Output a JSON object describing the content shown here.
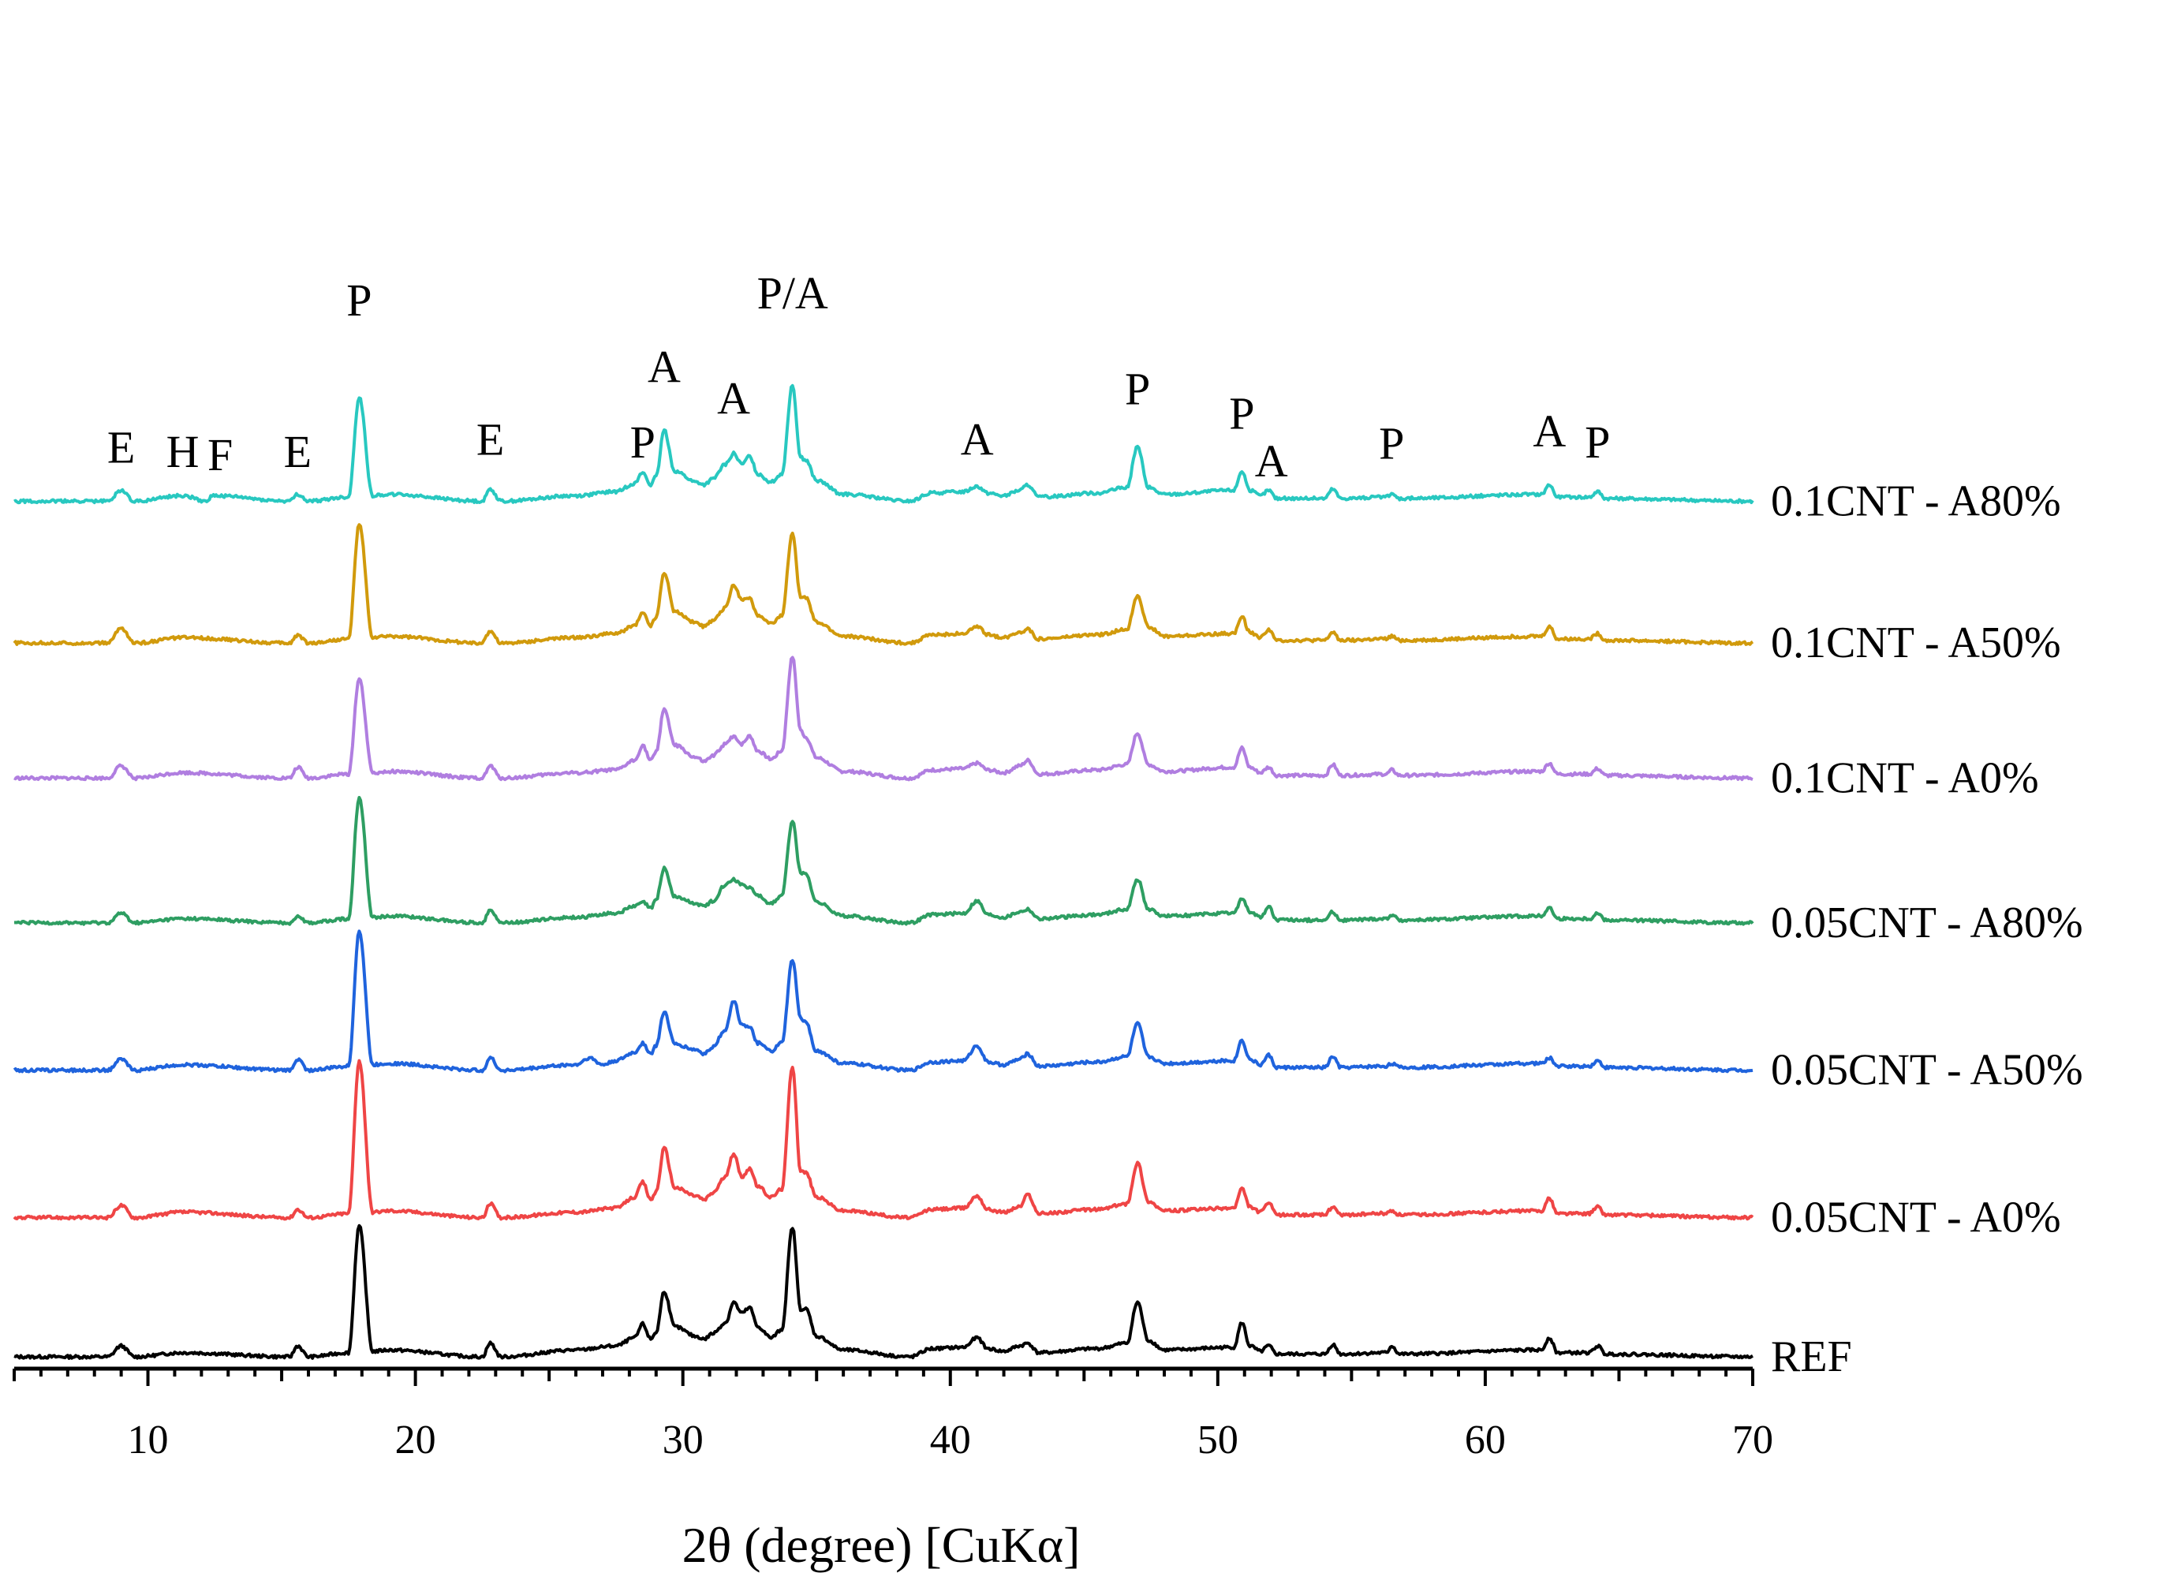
{
  "chart_data": {
    "type": "line",
    "title": "",
    "xlabel": "2θ (degree) [CuKα]",
    "ylabel": "",
    "xlim": [
      5,
      70
    ],
    "xticks": [
      "10",
      "20",
      "30",
      "40",
      "50",
      "60",
      "70"
    ],
    "grid": false,
    "legend": "labels-right-of-each-trace",
    "peaks": [
      {
        "x": 9.0,
        "y": 2.0,
        "label": "E"
      },
      {
        "x": 11.3,
        "y": 1.7,
        "label": "H"
      },
      {
        "x": 12.7,
        "y": 1.45,
        "label": "F"
      },
      {
        "x": 15.6,
        "y": 1.7,
        "label": "E"
      },
      {
        "x": 17.9,
        "y": 12.8,
        "label": "P"
      },
      {
        "x": 22.8,
        "y": 2.6,
        "label": "E"
      },
      {
        "x": 28.5,
        "y": 2.4,
        "label": "P"
      },
      {
        "x": 29.3,
        "y": 7.9,
        "label": "A"
      },
      {
        "x": 31.9,
        "y": 5.6,
        "label": "A"
      },
      {
        "x": 34.1,
        "y": 13.3,
        "label": "P/A"
      },
      {
        "x": 41.0,
        "y": 2.6,
        "label": "A"
      },
      {
        "x": 47.0,
        "y": 6.3,
        "label": "P"
      },
      {
        "x": 50.9,
        "y": 4.5,
        "label": "P"
      },
      {
        "x": 52.0,
        "y": 1.0,
        "label": "A"
      },
      {
        "x": 56.5,
        "y": 2.3,
        "label": "P"
      },
      {
        "x": 62.4,
        "y": 3.2,
        "label": "A"
      },
      {
        "x": 64.2,
        "y": 2.4,
        "label": "P"
      }
    ],
    "series": [
      {
        "name": "REF",
        "color": "#000000",
        "offset": 0,
        "x": [
          5,
          8.5,
          9.0,
          9.5,
          11.3,
          15.3,
          15.6,
          16,
          17.5,
          17.9,
          18.4,
          19,
          22.5,
          22.8,
          23.2,
          26,
          27.5,
          28.2,
          28.5,
          28.8,
          29.0,
          29.3,
          29.7,
          30.5,
          30.8,
          31.1,
          31.6,
          31.9,
          32.2,
          32.5,
          32.8,
          33.3,
          33.7,
          34.1,
          34.4,
          34.6,
          35.0,
          36.0,
          38.5,
          39.3,
          40.5,
          41.0,
          41.4,
          42.0,
          42.6,
          42.9,
          43.3,
          45.5,
          46.6,
          47.0,
          47.4,
          48.0,
          50.6,
          50.9,
          51.2,
          51.6,
          51.9,
          52.2,
          54.0,
          54.3,
          54.6,
          56.3,
          56.5,
          56.8,
          62.1,
          62.4,
          62.7,
          63.9,
          64.2,
          64.5,
          70
        ],
        "y": [
          0,
          0,
          0.8,
          0,
          0.3,
          0,
          0.8,
          0,
          0.3,
          9.6,
          0.4,
          0.5,
          0,
          1.0,
          0,
          0.5,
          0.8,
          1.4,
          2.4,
          1.3,
          1.8,
          4.8,
          2.2,
          1.5,
          1.3,
          1.7,
          2.5,
          4.0,
          3.2,
          3.6,
          2.2,
          1.4,
          2.0,
          9.5,
          3.5,
          3.5,
          1.5,
          0.5,
          0,
          0.6,
          0.7,
          1.4,
          0.6,
          0.4,
          0.8,
          1.0,
          0.3,
          0.6,
          1.0,
          4.0,
          1.2,
          0.5,
          0.7,
          2.5,
          0.8,
          0.4,
          0.8,
          0.2,
          0.2,
          0.9,
          0.2,
          0.3,
          0.8,
          0.2,
          0.5,
          1.4,
          0.3,
          0.3,
          0.8,
          0.2,
          0
        ]
      },
      {
        "name": "0.05CNT - A0%",
        "color": "#ef4545",
        "offset": 10.2,
        "x": [
          5,
          8.5,
          9.0,
          9.5,
          11.3,
          15.3,
          15.6,
          16,
          17.5,
          17.9,
          18.4,
          19,
          22.5,
          22.8,
          23.2,
          26,
          27.5,
          28.2,
          28.5,
          28.8,
          29.0,
          29.3,
          29.7,
          30.5,
          30.8,
          31.1,
          31.6,
          31.9,
          32.2,
          32.5,
          32.8,
          33.3,
          33.7,
          34.1,
          34.4,
          34.6,
          35.0,
          36.0,
          38.5,
          39.3,
          40.5,
          41.0,
          41.4,
          42.0,
          42.6,
          42.9,
          43.3,
          45.5,
          46.6,
          47.0,
          47.4,
          48.0,
          50.6,
          50.9,
          51.2,
          51.6,
          51.9,
          52.2,
          54.0,
          54.3,
          54.6,
          56.3,
          56.5,
          56.8,
          62.1,
          62.4,
          62.7,
          63.9,
          64.2,
          64.5,
          70
        ],
        "y": [
          0,
          0,
          0.9,
          0,
          0.4,
          0,
          0.6,
          0,
          0.3,
          11.5,
          0.4,
          0.5,
          0,
          1.0,
          0,
          0.4,
          0.7,
          1.5,
          2.6,
          1.3,
          1.9,
          5.1,
          2.2,
          1.6,
          1.3,
          1.8,
          3.0,
          4.7,
          3.0,
          3.6,
          2.3,
          1.5,
          2.1,
          11.1,
          3.4,
          3.3,
          1.5,
          0.5,
          0,
          0.6,
          0.7,
          1.6,
          0.6,
          0.4,
          0.8,
          1.7,
          0.3,
          0.6,
          1.0,
          4.0,
          1.2,
          0.5,
          0.7,
          2.1,
          0.8,
          0.4,
          1.1,
          0.2,
          0.2,
          0.8,
          0.2,
          0.3,
          0.5,
          0.2,
          0.5,
          1.4,
          0.3,
          0.3,
          0.8,
          0.2,
          0
        ]
      },
      {
        "name": "0.05CNT - A50%",
        "color": "#1f63dd",
        "offset": 21.0,
        "x": [
          5,
          8.5,
          9.0,
          9.5,
          11.3,
          15.3,
          15.6,
          16,
          17.5,
          17.9,
          18.4,
          19,
          22.5,
          22.8,
          23.2,
          26,
          26.5,
          27,
          27.5,
          28.2,
          28.5,
          28.8,
          29.0,
          29.3,
          29.7,
          30.5,
          30.8,
          31.1,
          31.6,
          31.9,
          32.2,
          32.5,
          32.8,
          33.3,
          33.7,
          34.1,
          34.4,
          34.6,
          35.0,
          36.0,
          38.5,
          39.3,
          40.5,
          41.0,
          41.4,
          42.0,
          42.6,
          42.9,
          43.3,
          45.5,
          46.6,
          47.0,
          47.4,
          48.0,
          50.6,
          50.9,
          51.2,
          51.6,
          51.9,
          52.2,
          54.0,
          54.3,
          54.6,
          56.3,
          56.5,
          56.8,
          62.1,
          62.4,
          62.7,
          63.9,
          64.2,
          64.5,
          70
        ],
        "y": [
          0,
          0,
          0.8,
          0,
          0.4,
          0,
          0.8,
          0,
          0.3,
          10.2,
          0.4,
          0.5,
          0,
          0.9,
          0,
          0.4,
          0.9,
          0.4,
          0.7,
          1.3,
          2.0,
          1.2,
          1.8,
          4.3,
          1.9,
          1.5,
          1.2,
          1.7,
          3.0,
          5.1,
          3.4,
          3.1,
          2.0,
          1.4,
          2.0,
          8.1,
          3.8,
          3.5,
          1.4,
          0.5,
          0,
          0.6,
          0.7,
          1.8,
          0.6,
          0.4,
          0.8,
          1.2,
          0.3,
          0.6,
          1.0,
          3.4,
          1.0,
          0.5,
          0.7,
          2.2,
          0.8,
          0.4,
          1.1,
          0.2,
          0.2,
          1.0,
          0.2,
          0.3,
          0.5,
          0.2,
          0.5,
          0.9,
          0.3,
          0.3,
          0.7,
          0.2,
          0
        ]
      },
      {
        "name": "0.05CNT - A80%",
        "color": "#2e9e62",
        "offset": 31.8,
        "x": [
          5,
          8.5,
          9.0,
          9.5,
          11.3,
          15.3,
          15.6,
          16,
          17.5,
          17.9,
          18.4,
          19,
          22.5,
          22.8,
          23.2,
          26,
          27.5,
          28.2,
          28.5,
          28.8,
          29.0,
          29.3,
          29.7,
          30.5,
          30.8,
          31.1,
          31.6,
          31.9,
          32.2,
          32.5,
          32.8,
          33.3,
          33.7,
          34.1,
          34.4,
          34.6,
          35.0,
          36.0,
          38.5,
          39.3,
          40.5,
          41.0,
          41.4,
          42.0,
          42.6,
          42.9,
          43.3,
          45.5,
          46.6,
          47.0,
          47.4,
          48.0,
          50.6,
          50.9,
          51.2,
          51.6,
          51.9,
          52.2,
          54.0,
          54.3,
          54.6,
          56.3,
          56.5,
          56.8,
          62.1,
          62.4,
          62.7,
          63.9,
          64.2,
          64.5,
          70
        ],
        "y": [
          0,
          0,
          0.7,
          0,
          0.3,
          0,
          0.5,
          0,
          0.3,
          9.2,
          0.4,
          0.5,
          0,
          1.0,
          0,
          0.4,
          0.7,
          1.2,
          1.5,
          1.1,
          1.7,
          4.0,
          1.9,
          1.4,
          1.2,
          1.6,
          2.8,
          3.2,
          2.8,
          2.6,
          2.0,
          1.4,
          2.0,
          7.5,
          3.7,
          3.6,
          1.5,
          0.5,
          0,
          0.6,
          0.7,
          1.6,
          0.6,
          0.4,
          0.8,
          1.0,
          0.3,
          0.6,
          1.0,
          3.2,
          1.0,
          0.5,
          0.7,
          1.8,
          0.8,
          0.4,
          1.2,
          0.2,
          0.2,
          0.8,
          0.2,
          0.3,
          0.6,
          0.2,
          0.5,
          1.1,
          0.3,
          0.3,
          0.7,
          0.2,
          0
        ]
      },
      {
        "name": "0.1CNT - A0%",
        "color": "#b07ee0",
        "offset": 42.4,
        "x": [
          5,
          8.5,
          9.0,
          9.5,
          11.3,
          15.3,
          15.6,
          16,
          17.5,
          17.9,
          18.4,
          19,
          22.5,
          22.8,
          23.2,
          26,
          27.5,
          28.2,
          28.5,
          28.8,
          29.0,
          29.3,
          29.7,
          30.5,
          30.8,
          31.1,
          31.6,
          31.9,
          32.2,
          32.5,
          32.8,
          33.3,
          33.7,
          34.1,
          34.4,
          34.6,
          35.0,
          36.0,
          38.5,
          39.3,
          40.5,
          41.0,
          41.4,
          42.0,
          42.6,
          42.9,
          43.3,
          45.5,
          46.6,
          47.0,
          47.4,
          48.0,
          50.6,
          50.9,
          51.2,
          51.6,
          51.9,
          52.2,
          54.0,
          54.3,
          54.6,
          56.3,
          56.5,
          56.8,
          62.1,
          62.4,
          62.7,
          63.9,
          64.2,
          64.5,
          70
        ],
        "y": [
          0,
          0,
          0.9,
          0,
          0.4,
          0,
          0.8,
          0,
          0.3,
          7.3,
          0.4,
          0.5,
          0,
          0.9,
          0,
          0.4,
          0.6,
          1.3,
          2.4,
          1.3,
          1.9,
          5.1,
          2.4,
          1.5,
          1.2,
          1.6,
          2.5,
          3.1,
          2.5,
          3.1,
          2.0,
          1.4,
          2.0,
          8.9,
          3.5,
          3.0,
          1.5,
          0.5,
          0,
          0.6,
          0.7,
          1.1,
          0.6,
          0.4,
          0.9,
          1.3,
          0.3,
          0.6,
          1.0,
          3.3,
          1.0,
          0.5,
          0.8,
          2.2,
          0.8,
          0.4,
          0.8,
          0.2,
          0.2,
          1.0,
          0.2,
          0.3,
          0.6,
          0.2,
          0.5,
          1.1,
          0.3,
          0.3,
          0.7,
          0.2,
          0
        ]
      },
      {
        "name": "0.1CNT - A50%",
        "color": "#d19a0c",
        "offset": 52.3,
        "x": [
          5,
          8.5,
          9.0,
          9.5,
          11.3,
          15.3,
          15.6,
          16,
          17.5,
          17.9,
          18.4,
          19,
          22.5,
          22.8,
          23.2,
          26,
          27.5,
          28.2,
          28.5,
          28.8,
          29.0,
          29.3,
          29.7,
          30.5,
          30.8,
          31.1,
          31.6,
          31.9,
          32.2,
          32.5,
          32.8,
          33.3,
          33.7,
          34.1,
          34.4,
          34.6,
          35.0,
          36.0,
          38.5,
          39.3,
          40.5,
          41.0,
          41.4,
          42.0,
          42.6,
          42.9,
          43.3,
          45.5,
          46.6,
          47.0,
          47.4,
          48.0,
          50.6,
          50.9,
          51.2,
          51.6,
          51.9,
          52.2,
          54.0,
          54.3,
          54.6,
          56.3,
          56.5,
          56.8,
          62.1,
          62.4,
          62.7,
          63.9,
          64.2,
          64.5,
          70
        ],
        "y": [
          0,
          0,
          1.1,
          0,
          0.4,
          0,
          0.6,
          0,
          0.3,
          8.7,
          0.4,
          0.5,
          0,
          0.9,
          0,
          0.4,
          0.7,
          1.3,
          2.2,
          1.3,
          1.9,
          5.2,
          2.3,
          1.5,
          1.2,
          1.6,
          2.6,
          4.3,
          3.2,
          3.3,
          2.0,
          1.4,
          2.0,
          8.1,
          3.4,
          3.3,
          1.5,
          0.5,
          0,
          0.6,
          0.7,
          1.2,
          0.6,
          0.4,
          0.8,
          1.0,
          0.3,
          0.6,
          1.0,
          3.5,
          1.2,
          0.5,
          0.7,
          1.9,
          0.8,
          0.4,
          1.0,
          0.2,
          0.2,
          0.8,
          0.2,
          0.3,
          0.5,
          0.2,
          0.5,
          1.2,
          0.3,
          0.3,
          0.7,
          0.2,
          0
        ]
      },
      {
        "name": "0.1CNT - A80%",
        "color": "#28c8c0",
        "offset": 62.7,
        "x": [
          5,
          8.5,
          9.0,
          9.5,
          11.3,
          12.2,
          12.4,
          15.3,
          15.6,
          16,
          17.5,
          17.9,
          18.4,
          19,
          22.5,
          22.8,
          23.2,
          26,
          27.5,
          28.2,
          28.5,
          28.8,
          29.0,
          29.3,
          29.7,
          30.5,
          30.8,
          31.1,
          31.6,
          31.9,
          32.2,
          32.5,
          32.8,
          33.3,
          33.7,
          34.1,
          34.4,
          34.6,
          35.0,
          36.0,
          38.5,
          39.3,
          40.5,
          41.0,
          41.4,
          42.0,
          42.6,
          42.9,
          43.3,
          45.5,
          46.6,
          47.0,
          47.4,
          48.0,
          50.6,
          50.9,
          51.2,
          51.6,
          51.9,
          52.2,
          54.0,
          54.3,
          54.6,
          56.3,
          56.5,
          56.8,
          62.1,
          62.4,
          62.7,
          63.9,
          64.2,
          64.5,
          70
        ],
        "y": [
          0,
          0,
          0.8,
          0,
          0.4,
          0,
          0.4,
          0,
          0.5,
          0,
          0.3,
          7.6,
          0.4,
          0.5,
          0,
          0.9,
          0,
          0.4,
          0.7,
          1.3,
          2.1,
          1.2,
          1.8,
          5.2,
          2.2,
          1.4,
          1.2,
          1.6,
          2.7,
          3.5,
          2.7,
          3.3,
          2.0,
          1.4,
          2.0,
          8.5,
          3.2,
          3.0,
          1.5,
          0.5,
          0,
          0.6,
          0.7,
          1.1,
          0.6,
          0.4,
          0.8,
          1.2,
          0.3,
          0.6,
          1.0,
          4.0,
          1.0,
          0.5,
          0.8,
          2.2,
          0.8,
          0.4,
          0.8,
          0.2,
          0.2,
          0.9,
          0.2,
          0.3,
          0.5,
          0.2,
          0.5,
          1.2,
          0.3,
          0.3,
          0.7,
          0.2,
          0
        ]
      }
    ]
  }
}
